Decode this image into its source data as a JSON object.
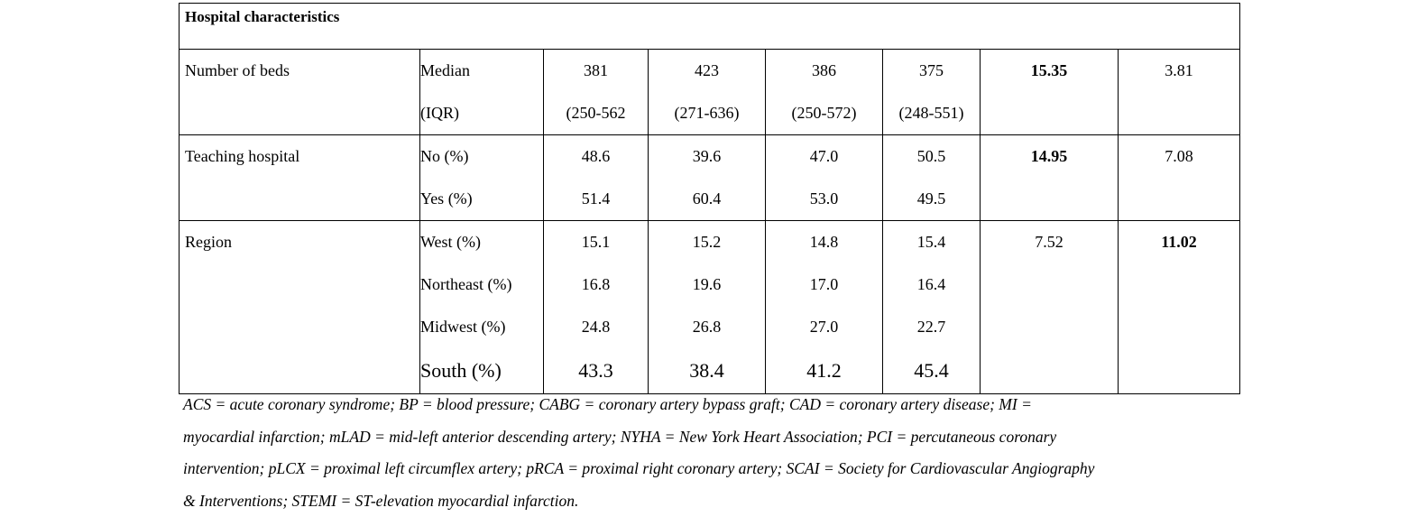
{
  "table": {
    "section_title": "Hospital characteristics",
    "rows": [
      {
        "label": "Number of beds",
        "sub": [
          "Median",
          "(IQR)"
        ],
        "cols": [
          [
            "381",
            "(250-562"
          ],
          [
            "423",
            "(271-636)"
          ],
          [
            "386",
            "(250-572)"
          ],
          [
            "375",
            "(248-551)"
          ]
        ],
        "stat1": "15.35",
        "stat2": "3.81"
      },
      {
        "label": "Teaching hospital",
        "sub": [
          "No (%)",
          "Yes (%)"
        ],
        "cols": [
          [
            "48.6",
            "51.4"
          ],
          [
            "39.6",
            "60.4"
          ],
          [
            "47.0",
            "53.0"
          ],
          [
            "50.5",
            "49.5"
          ]
        ],
        "stat1": "14.95",
        "stat2": "7.08"
      },
      {
        "label": "Region",
        "sub": [
          "West (%)",
          "Northeast (%)",
          "Midwest (%)",
          "South (%)"
        ],
        "cols": [
          [
            "15.1",
            "16.8",
            "24.8",
            "43.3"
          ],
          [
            "15.2",
            "19.6",
            "26.8",
            "38.4"
          ],
          [
            "14.8",
            "17.0",
            "27.0",
            "41.2"
          ],
          [
            "15.4",
            "16.4",
            "22.7",
            "45.4"
          ]
        ],
        "stat1": "7.52",
        "stat2": "11.02"
      }
    ]
  },
  "footnote": {
    "lines": [
      "ACS = acute coronary syndrome; BP = blood pressure; CABG = coronary artery bypass graft; CAD = coronary artery disease; MI =",
      "myocardial infarction; mLAD = mid-left anterior descending artery; NYHA = New York Heart Association; PCI = percutaneous coronary",
      "intervention; pLCX = proximal left circumflex artery; pRCA = proximal right coronary artery; SCAI = Society for Cardiovascular Angiography",
      "& Interventions; STEMI = ST-elevation myocardial infarction."
    ]
  }
}
